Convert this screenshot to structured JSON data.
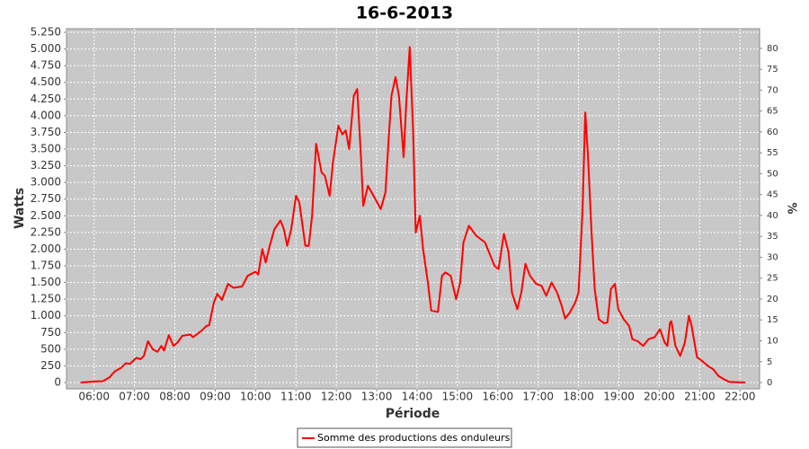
{
  "chart_data": {
    "type": "line",
    "title": "16-6-2013",
    "xlabel": "Période",
    "ylabel": "Watts",
    "y2label": "%",
    "grid": true,
    "legend": "bottom",
    "xlim": [
      "05:19",
      "22:29"
    ],
    "xticks": [
      "06:00",
      "07:00",
      "08:00",
      "09:00",
      "10:00",
      "11:00",
      "12:00",
      "13:00",
      "14:00",
      "15:00",
      "16:00",
      "17:00",
      "18:00",
      "19:00",
      "20:00",
      "21:00",
      "22:00"
    ],
    "ylim": [
      -94,
      5304
    ],
    "yticks": [
      0,
      250,
      500,
      750,
      {
        "value": 1000,
        "label": "1.000"
      },
      {
        "value": 1250,
        "label": "1.250"
      },
      {
        "value": 1500,
        "label": "1.500"
      },
      {
        "value": 1750,
        "label": "1.750"
      },
      {
        "value": 2000,
        "label": "2.000"
      },
      {
        "value": 2250,
        "label": "2.250"
      },
      {
        "value": 2500,
        "label": "2.500"
      },
      {
        "value": 2750,
        "label": "2.750"
      },
      {
        "value": 3000,
        "label": "3.000"
      },
      {
        "value": 3250,
        "label": "3.250"
      },
      {
        "value": 3500,
        "label": "3.500"
      },
      {
        "value": 3750,
        "label": "3.750"
      },
      {
        "value": 4000,
        "label": "4.000"
      },
      {
        "value": 4250,
        "label": "4.250"
      },
      {
        "value": 4500,
        "label": "4.500"
      },
      {
        "value": 4750,
        "label": "4.750"
      },
      {
        "value": 5000,
        "label": "5.000"
      },
      {
        "value": 5250,
        "label": "5.250"
      }
    ],
    "y2lim": [
      -1.5,
      84.7
    ],
    "y2ticks": [
      0,
      5,
      10,
      15,
      20,
      25,
      30,
      35,
      40,
      45,
      50,
      55,
      60,
      65,
      70,
      75,
      80
    ],
    "x": [
      "05:40",
      "06:00",
      "06:13",
      "06:23",
      "06:31",
      "06:40",
      "06:47",
      "06:53",
      "07:03",
      "07:09",
      "07:14",
      "07:20",
      "07:27",
      "07:34",
      "07:40",
      "07:44",
      "07:51",
      "07:58",
      "08:04",
      "08:11",
      "08:23",
      "08:27",
      "08:40",
      "08:47",
      "08:51",
      "08:58",
      "09:03",
      "09:10",
      "09:19",
      "09:27",
      "09:40",
      "09:48",
      "10:00",
      "10:04",
      "10:10",
      "10:15",
      "10:21",
      "10:28",
      "10:37",
      "10:42",
      "10:47",
      "10:53",
      "11:00",
      "11:05",
      "11:14",
      "11:19",
      "11:24",
      "11:30",
      "11:38",
      "11:43",
      "11:50",
      "11:55",
      "12:03",
      "12:09",
      "12:14",
      "12:19",
      "12:26",
      "12:31",
      "12:37",
      "12:40",
      "12:47",
      "12:58",
      "13:06",
      "13:13",
      "13:18",
      "13:22",
      "13:28",
      "13:33",
      "13:40",
      "13:44",
      "13:49",
      "13:54",
      "13:58",
      "14:04",
      "14:09",
      "14:16",
      "14:21",
      "14:31",
      "14:37",
      "14:42",
      "14:50",
      "14:58",
      "15:04",
      "15:09",
      "15:17",
      "15:28",
      "15:41",
      "15:55",
      "16:01",
      "16:09",
      "16:16",
      "16:21",
      "16:29",
      "16:35",
      "16:41",
      "16:48",
      "16:57",
      "17:05",
      "17:12",
      "17:20",
      "17:28",
      "17:35",
      "17:40",
      "17:47",
      "17:55",
      "18:00",
      "18:06",
      "18:10",
      "18:14",
      "18:19",
      "18:24",
      "18:30",
      "18:38",
      "18:43",
      "18:48",
      "18:54",
      "18:59",
      "19:07",
      "19:15",
      "19:20",
      "19:28",
      "19:36",
      "19:44",
      "19:53",
      "20:01",
      "20:08",
      "20:12",
      "20:16",
      "20:18",
      "20:24",
      "20:31",
      "20:38",
      "20:44",
      "20:48",
      "20:56",
      "21:04",
      "21:12",
      "21:20",
      "21:28",
      "21:36",
      "21:44",
      "22:08"
    ],
    "series": [
      {
        "name": "Somme des productions des onduleurs",
        "color": "#ff0000",
        "values": [
          0,
          15,
          20,
          80,
          170,
          220,
          290,
          280,
          370,
          350,
          400,
          620,
          500,
          460,
          550,
          480,
          710,
          550,
          600,
          700,
          720,
          680,
          780,
          850,
          860,
          1200,
          1330,
          1240,
          1480,
          1420,
          1440,
          1600,
          1660,
          1620,
          2000,
          1800,
          2050,
          2300,
          2430,
          2300,
          2050,
          2300,
          2800,
          2700,
          2050,
          2050,
          2500,
          3580,
          3150,
          3100,
          2800,
          3300,
          3850,
          3720,
          3780,
          3500,
          4300,
          4400,
          3300,
          2650,
          2950,
          2750,
          2600,
          2850,
          3700,
          4300,
          4580,
          4300,
          3380,
          4200,
          5030,
          3800,
          2250,
          2500,
          2000,
          1500,
          1080,
          1060,
          1600,
          1650,
          1600,
          1250,
          1500,
          2100,
          2350,
          2200,
          2100,
          1750,
          1700,
          2230,
          1950,
          1350,
          1100,
          1350,
          1780,
          1600,
          1480,
          1450,
          1300,
          1500,
          1350,
          1150,
          960,
          1050,
          1200,
          1350,
          2600,
          4050,
          3400,
          2300,
          1400,
          950,
          890,
          900,
          1400,
          1480,
          1100,
          950,
          850,
          650,
          620,
          550,
          650,
          680,
          800,
          600,
          550,
          900,
          920,
          550,
          400,
          600,
          1000,
          850,
          380,
          320,
          250,
          200,
          100,
          50,
          10,
          0
        ]
      }
    ]
  }
}
